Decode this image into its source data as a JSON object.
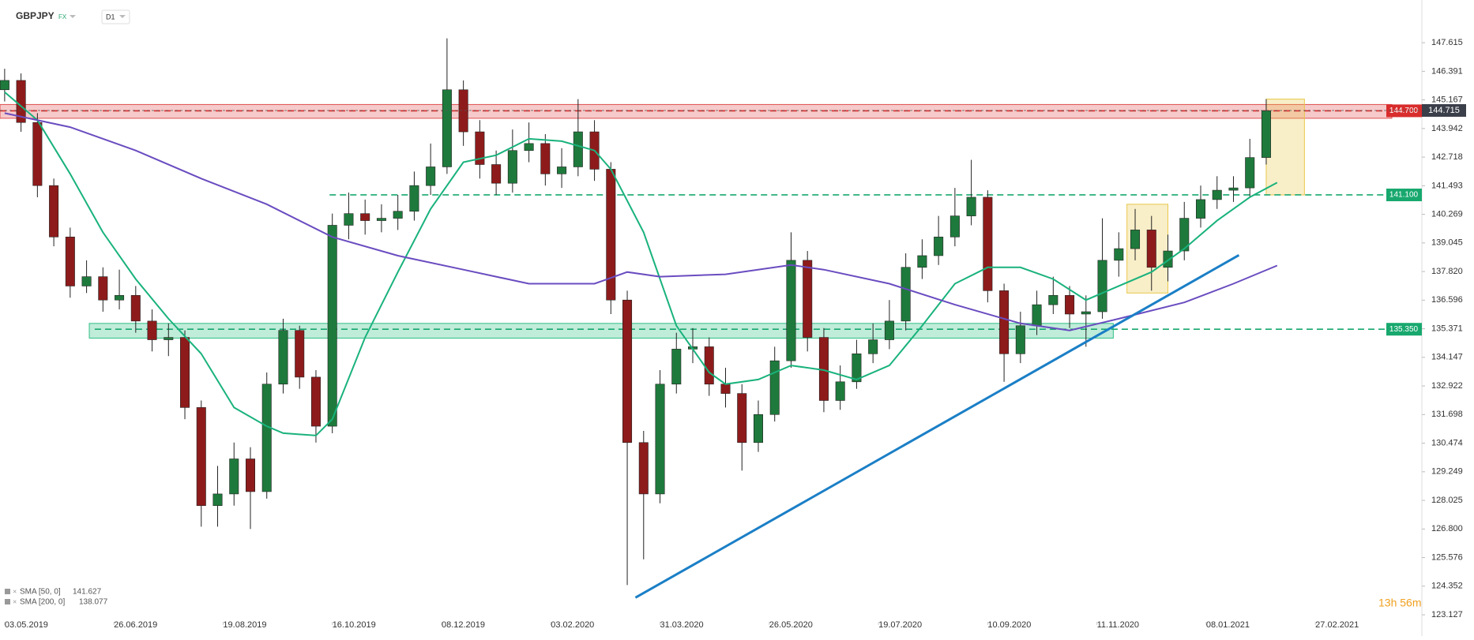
{
  "header": {
    "symbol": "GBPJPY",
    "market": "FX",
    "interval": "D1"
  },
  "chart_data": {
    "type": "candlestick",
    "x": [
      0,
      6,
      12,
      18,
      24,
      30,
      36,
      42,
      48,
      54,
      60,
      66,
      72,
      78,
      84,
      90,
      96,
      102,
      108,
      114,
      120,
      126,
      132,
      138,
      144,
      150,
      156,
      162,
      168,
      174,
      180,
      186,
      192,
      198,
      204,
      210,
      216,
      222,
      228,
      234,
      240,
      246,
      252,
      258,
      264,
      270,
      276,
      282,
      288,
      294,
      300,
      306,
      312,
      318,
      324,
      330,
      336,
      342,
      348,
      354,
      360,
      366,
      372,
      378,
      384,
      390,
      396,
      402,
      408,
      414,
      420,
      426,
      432,
      438,
      444,
      450,
      456,
      462
    ],
    "open": [
      145.6,
      146.0,
      144.2,
      141.5,
      139.3,
      137.2,
      137.6,
      136.6,
      136.8,
      135.7,
      134.9,
      135.0,
      132.0,
      127.8,
      128.3,
      129.8,
      128.4,
      133.0,
      135.3,
      133.3,
      131.2,
      139.8,
      140.3,
      140.0,
      140.1,
      140.4,
      141.5,
      142.3,
      145.6,
      143.8,
      142.4,
      141.6,
      143.0,
      143.3,
      142.0,
      142.3,
      143.8,
      142.2,
      136.6,
      130.5,
      128.3,
      133.0,
      134.5,
      134.6,
      133.0,
      132.6,
      130.5,
      131.7,
      134.0,
      138.3,
      135.0,
      132.3,
      133.1,
      134.3,
      134.9,
      135.7,
      138.0,
      138.5,
      139.3,
      140.2,
      141.0,
      137.0,
      134.3,
      135.5,
      136.4,
      136.8,
      136.0,
      136.1,
      138.3,
      138.8,
      139.6,
      138.0,
      138.7,
      140.1,
      140.9,
      141.3,
      141.4,
      142.7
    ],
    "high": [
      146.5,
      146.3,
      144.6,
      141.8,
      139.7,
      138.3,
      138.0,
      137.9,
      137.2,
      136.2,
      135.6,
      135.3,
      132.3,
      129.5,
      130.5,
      130.3,
      133.5,
      135.8,
      135.5,
      133.6,
      140.3,
      141.2,
      140.9,
      140.7,
      141.1,
      142.1,
      143.3,
      147.8,
      146.0,
      144.3,
      143.0,
      143.9,
      144.2,
      143.7,
      143.1,
      145.2,
      144.3,
      142.5,
      137.0,
      131.0,
      133.6,
      135.2,
      135.4,
      135.0,
      133.7,
      133.0,
      132.3,
      134.6,
      139.5,
      138.7,
      135.4,
      133.8,
      134.9,
      135.6,
      136.6,
      138.6,
      139.2,
      140.2,
      141.4,
      142.6,
      141.3,
      137.3,
      136.1,
      137.0,
      137.6,
      137.2,
      136.8,
      140.1,
      139.5,
      140.5,
      140.2,
      139.4,
      140.8,
      141.5,
      141.9,
      141.9,
      143.5,
      145.2
    ],
    "low": [
      145.1,
      143.8,
      141.0,
      138.9,
      136.7,
      136.9,
      136.1,
      136.2,
      135.2,
      134.4,
      134.2,
      131.5,
      126.9,
      126.9,
      127.8,
      126.8,
      128.1,
      132.6,
      132.8,
      130.5,
      130.9,
      139.2,
      139.4,
      139.5,
      139.6,
      140.0,
      141.1,
      142.0,
      143.2,
      141.8,
      141.1,
      141.2,
      142.5,
      141.5,
      141.4,
      141.9,
      141.7,
      136.0,
      124.4,
      125.5,
      127.9,
      132.6,
      133.9,
      132.5,
      132.0,
      129.3,
      130.1,
      131.4,
      133.7,
      134.4,
      131.8,
      131.9,
      132.8,
      133.9,
      134.5,
      135.3,
      137.5,
      138.1,
      138.9,
      139.8,
      136.5,
      133.1,
      133.9,
      135.1,
      136.0,
      135.4,
      134.6,
      135.8,
      137.6,
      138.3,
      137.0,
      137.4,
      138.3,
      139.7,
      140.5,
      140.8,
      141.0,
      142.4
    ],
    "close": [
      146.0,
      144.2,
      141.5,
      139.3,
      137.2,
      137.6,
      136.6,
      136.8,
      135.7,
      134.9,
      135.0,
      132.0,
      127.8,
      128.3,
      129.8,
      128.4,
      133.0,
      135.3,
      133.3,
      131.2,
      139.8,
      140.3,
      140.0,
      140.1,
      140.4,
      141.5,
      142.3,
      145.6,
      143.8,
      142.4,
      141.6,
      143.0,
      143.3,
      142.0,
      142.3,
      143.8,
      142.2,
      136.6,
      130.5,
      128.3,
      133.0,
      134.5,
      134.6,
      133.0,
      132.6,
      130.5,
      131.7,
      134.0,
      138.3,
      135.0,
      132.3,
      133.1,
      134.3,
      134.9,
      135.7,
      138.0,
      138.5,
      139.3,
      140.2,
      141.0,
      137.0,
      134.3,
      135.5,
      136.4,
      136.8,
      136.0,
      136.1,
      138.3,
      138.8,
      139.6,
      138.0,
      138.7,
      140.1,
      140.9,
      141.3,
      141.4,
      142.7,
      144.7
    ],
    "up_color": "#1e7a3c",
    "down_color": "#8e1b1b",
    "xlim": [
      -1.7,
      519
    ],
    "xticks": [
      {
        "value": 0,
        "label": "03.05.2019"
      },
      {
        "value": 40,
        "label": "26.06.2019"
      },
      {
        "value": 80,
        "label": "19.08.2019"
      },
      {
        "value": 120,
        "label": "16.10.2019"
      },
      {
        "value": 160,
        "label": "08.12.2019"
      },
      {
        "value": 200,
        "label": "03.02.2020"
      },
      {
        "value": 240,
        "label": "31.03.2020"
      },
      {
        "value": 280,
        "label": "26.05.2020"
      },
      {
        "value": 320,
        "label": "19.07.2020"
      },
      {
        "value": 360,
        "label": "10.09.2020"
      },
      {
        "value": 400,
        "label": "11.11.2020"
      },
      {
        "value": 440,
        "label": "08.01.2021"
      },
      {
        "value": 480,
        "label": "27.02.2021"
      }
    ],
    "ylim": [
      122.69,
      148.97
    ],
    "yticks": [
      147.615,
      146.391,
      145.167,
      143.942,
      142.718,
      141.493,
      140.269,
      139.045,
      {
        "value": 137.82,
        "label": "137.820"
      },
      136.596,
      135.371,
      134.147,
      132.922,
      131.698,
      130.474,
      129.249,
      128.025,
      {
        "value": 126.8,
        "label": "126.800"
      },
      125.576,
      124.352,
      123.127
    ],
    "series": [
      {
        "name": "SMA [50, 0]",
        "last_value": 141.627,
        "color": "#19b27c",
        "x": [
          0,
          12,
          24,
          36,
          48,
          60,
          72,
          84,
          96,
          102,
          114,
          120,
          132,
          144,
          156,
          168,
          180,
          192,
          204,
          216,
          222,
          234,
          246,
          258,
          264,
          276,
          288,
          300,
          312,
          324,
          336,
          348,
          360,
          372,
          384,
          396,
          408,
          420,
          432,
          444,
          456,
          466
        ],
        "values": [
          145.5,
          144.3,
          142,
          139.5,
          137.5,
          135.8,
          134.3,
          132,
          131.2,
          130.9,
          130.8,
          131.5,
          135,
          137.8,
          140.5,
          142.5,
          142.8,
          143.5,
          143.4,
          143,
          142.2,
          139.5,
          135.5,
          133.5,
          133,
          133.2,
          133.8,
          133.6,
          133.2,
          133.8,
          135.5,
          137.3,
          138,
          138,
          137.5,
          136.6,
          137.2,
          137.8,
          138.8,
          140,
          141,
          141.627
        ]
      },
      {
        "name": "SMA [200, 0]",
        "last_value": 138.077,
        "color": "#6a4cc0",
        "x": [
          0,
          24,
          48,
          72,
          96,
          120,
          144,
          168,
          192,
          216,
          228,
          240,
          264,
          288,
          300,
          324,
          348,
          372,
          390,
          408,
          432,
          450,
          466
        ],
        "values": [
          144.6,
          144,
          143,
          141.8,
          140.7,
          139.3,
          138.5,
          137.9,
          137.3,
          137.3,
          137.8,
          137.6,
          137.7,
          138.1,
          137.9,
          137.3,
          136.4,
          135.6,
          135.3,
          135.8,
          136.5,
          137.3,
          138.077
        ]
      }
    ],
    "levels": [
      {
        "value": 144.7,
        "label": "144.700",
        "color": "#d92c2c",
        "from": -1.7
      },
      {
        "value": 141.1,
        "label": "141.100",
        "color": "#18a86e",
        "from": 119
      },
      {
        "value": 135.35,
        "label": "135.350",
        "color": "#18a86e",
        "from": 33
      }
    ],
    "zones": [
      {
        "x": [
          -1.7,
          508
        ],
        "y": [
          144.38,
          144.97
        ],
        "color": "#e05050"
      },
      {
        "x": [
          31,
          406
        ],
        "y": [
          134.97,
          135.6
        ],
        "color": "#2fbf86"
      },
      {
        "x": [
          411,
          426
        ],
        "y": [
          136.9,
          140.7
        ],
        "color": "#e8c84a"
      },
      {
        "x": [
          462,
          476
        ],
        "y": [
          141.1,
          145.2
        ],
        "color": "#e8c84a"
      }
    ],
    "trendline": {
      "x": [
        231,
        452
      ],
      "y": [
        123.86,
        138.52
      ],
      "color": "#1b7fc6"
    },
    "last_price": 144.715,
    "timer": "13h 56m"
  }
}
